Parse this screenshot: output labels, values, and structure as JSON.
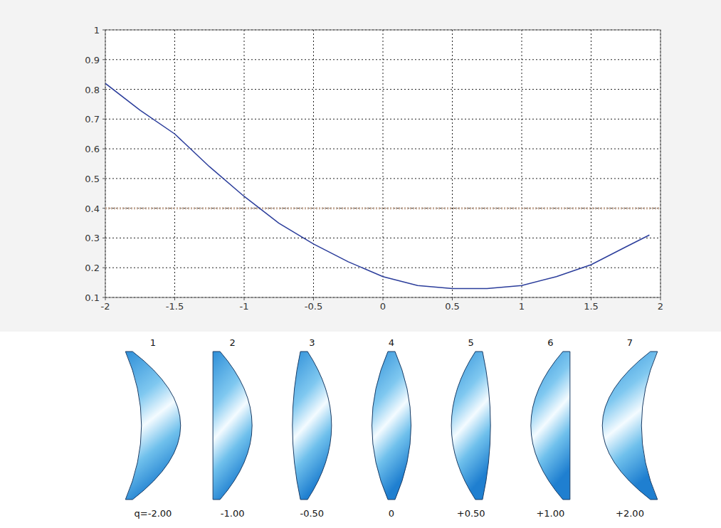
{
  "chart_data": {
    "type": "line",
    "x": [
      -2,
      -1.75,
      -1.5,
      -1.25,
      -1,
      -0.75,
      -0.5,
      -0.25,
      0,
      0.25,
      0.5,
      0.75,
      1,
      1.25,
      1.5,
      1.75,
      1.92
    ],
    "values": [
      0.82,
      0.73,
      0.65,
      0.54,
      0.44,
      0.35,
      0.28,
      0.22,
      0.17,
      0.14,
      0.13,
      0.13,
      0.14,
      0.17,
      0.21,
      0.27,
      0.31
    ],
    "color": "#2b3d9b",
    "xlim": [
      -2,
      2
    ],
    "ylim": [
      0.1,
      1
    ],
    "xticks": [
      -2,
      -1.5,
      -1,
      -0.5,
      0,
      0.5,
      1,
      1.5,
      2
    ],
    "yticks": [
      0.1,
      0.2,
      0.3,
      0.4,
      0.5,
      0.6,
      0.7,
      0.8,
      0.9,
      1
    ],
    "grid": true,
    "reference_line": {
      "value": 0.4,
      "color": "#c4aa98"
    }
  },
  "lenses": {
    "items": [
      {
        "number": "1",
        "q": -2,
        "label": "q=-2.00"
      },
      {
        "number": "2",
        "q": -1,
        "label": "-1.00"
      },
      {
        "number": "3",
        "q": -0.5,
        "label": "-0.50"
      },
      {
        "number": "4",
        "q": 0,
        "label": "0"
      },
      {
        "number": "5",
        "q": 0.5,
        "label": "+0.50"
      },
      {
        "number": "6",
        "q": 1,
        "label": "+1.00"
      },
      {
        "number": "7",
        "q": 2,
        "label": "+2.00"
      }
    ]
  }
}
